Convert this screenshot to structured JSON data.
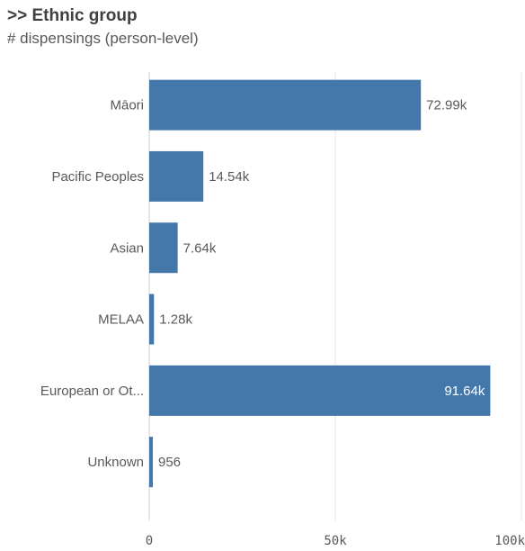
{
  "header": {
    "title": ">> Ethnic group",
    "subtitle": "# dispensings (person-level)"
  },
  "colors": {
    "bar": "#4477aa",
    "grid": "#e6e6e6",
    "axis": "#cccccc"
  },
  "chart_data": {
    "type": "bar",
    "orientation": "horizontal",
    "title": ">> Ethnic group",
    "subtitle": "# dispensings (person-level)",
    "categories": [
      "Māori",
      "Pacific Peoples",
      "Asian",
      "MELAA",
      "European or Ot...",
      "Unknown"
    ],
    "values": [
      72990,
      14540,
      7640,
      1280,
      91640,
      956
    ],
    "value_labels": [
      "72.99k",
      "14.54k",
      "7.64k",
      "1.28k",
      "91.64k",
      "956"
    ],
    "xlim": [
      0,
      100000
    ],
    "x_ticks": [
      0,
      50000,
      100000
    ],
    "x_tick_labels": [
      "0",
      "50k",
      "100k"
    ],
    "grid": true,
    "legend": "none"
  }
}
